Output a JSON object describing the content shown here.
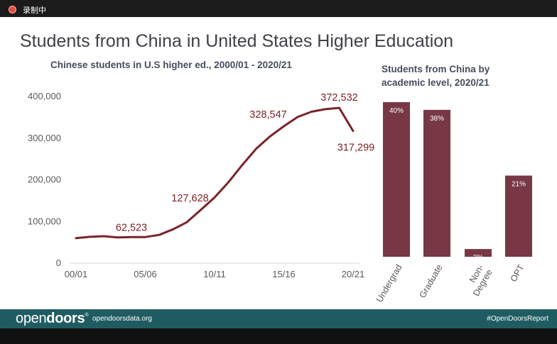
{
  "recording": {
    "label": "录制中"
  },
  "slide": {
    "title": "Students from China in United States Higher Education"
  },
  "chart_data": [
    {
      "type": "line",
      "title": "Chinese students in U.S higher ed., 2000/01 - 2020/21",
      "color": "#7b2328",
      "x_labels": [
        "00/01",
        "05/06",
        "10/11",
        "15/16",
        "20/21"
      ],
      "y_ticks": [
        "0",
        "100,000",
        "200,000",
        "300,000",
        "400,000"
      ],
      "ylim": [
        0,
        400000
      ],
      "x": [
        "2000/01",
        "2001/02",
        "2002/03",
        "2003/04",
        "2004/05",
        "2005/06",
        "2006/07",
        "2007/08",
        "2008/09",
        "2009/10",
        "2010/11",
        "2011/12",
        "2012/13",
        "2013/14",
        "2014/15",
        "2015/16",
        "2016/17",
        "2017/18",
        "2018/19",
        "2019/20",
        "2020/21"
      ],
      "values": [
        59939,
        63211,
        64757,
        61765,
        62523,
        62582,
        67723,
        81127,
        98235,
        127628,
        157558,
        194029,
        235597,
        274439,
        304040,
        328547,
        350755,
        363341,
        369548,
        372532,
        317299
      ],
      "annotations": [
        {
          "index": 4,
          "label": "62,523"
        },
        {
          "index": 9,
          "label": "127,628"
        },
        {
          "index": 15,
          "label": "328,547"
        },
        {
          "index": 19,
          "label": "372,532"
        },
        {
          "index": 20,
          "label": "317,299"
        }
      ],
      "grid": false
    },
    {
      "type": "bar",
      "title": "Students from China by academic level, 2020/21",
      "color": "#773745",
      "categories": [
        "Undergrad",
        "Graduate",
        "Non-Degree",
        "OPT"
      ],
      "category_lines": [
        [
          "Undergrad"
        ],
        [
          "Graduate"
        ],
        [
          "Non-",
          "Degree"
        ],
        [
          "OPT"
        ]
      ],
      "values": [
        40,
        38,
        2,
        21
      ],
      "value_labels": [
        "40%",
        "38%",
        "2%",
        "21%"
      ],
      "ylim": [
        0,
        40
      ]
    }
  ],
  "footer": {
    "logo_regular": "open",
    "logo_bold": "doors",
    "logo_mark": "®",
    "url": "opendoorsdata.org",
    "hashtag": "#OpenDoorsReport"
  }
}
